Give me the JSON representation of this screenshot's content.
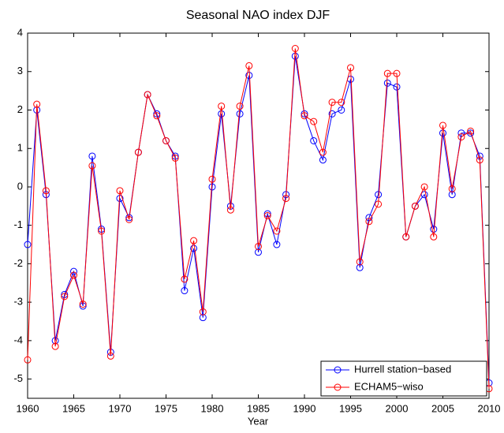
{
  "chart_data": {
    "type": "line",
    "title": "Seasonal NAO index DJF",
    "x_label": "Year",
    "x": [
      1960,
      1961,
      1962,
      1963,
      1964,
      1965,
      1966,
      1967,
      1968,
      1969,
      1970,
      1971,
      1972,
      1973,
      1974,
      1975,
      1976,
      1977,
      1978,
      1979,
      1980,
      1981,
      1982,
      1983,
      1984,
      1985,
      1986,
      1987,
      1988,
      1989,
      1990,
      1991,
      1992,
      1993,
      1994,
      1995,
      1996,
      1997,
      1998,
      1999,
      2000,
      2001,
      2002,
      2003,
      2004,
      2005,
      2006,
      2007,
      2008,
      2009,
      2010
    ],
    "series": [
      {
        "name": "Hurrell station−based",
        "color": "#0000ff",
        "values": [
          -1.5,
          2.0,
          -0.2,
          -4.0,
          -2.8,
          -2.2,
          -3.1,
          0.8,
          -1.1,
          -4.3,
          -0.3,
          -0.8,
          0.9,
          2.4,
          1.9,
          1.2,
          0.8,
          -2.7,
          -1.6,
          -3.4,
          0.0,
          1.9,
          -0.5,
          1.9,
          2.9,
          -1.7,
          -0.7,
          -1.5,
          -0.2,
          3.4,
          1.9,
          1.2,
          0.7,
          1.9,
          2.0,
          2.8,
          -2.1,
          -0.8,
          -0.2,
          2.7,
          2.6,
          -1.3,
          -0.5,
          -0.2,
          -1.1,
          1.4,
          -0.2,
          1.4,
          1.4,
          0.8,
          -5.1
        ]
      },
      {
        "name": "ECHAM5−wiso",
        "color": "#ff0000",
        "values": [
          -4.5,
          2.15,
          -0.1,
          -4.15,
          -2.85,
          -2.3,
          -3.05,
          0.55,
          -1.15,
          -4.4,
          -0.1,
          -0.85,
          0.9,
          2.4,
          1.85,
          1.2,
          0.75,
          -2.4,
          -1.4,
          -3.25,
          0.2,
          2.1,
          -0.6,
          2.1,
          3.15,
          -1.55,
          -0.75,
          -1.15,
          -0.3,
          3.6,
          1.85,
          1.7,
          0.9,
          2.2,
          2.2,
          3.1,
          -1.95,
          -0.9,
          -0.45,
          2.95,
          2.95,
          -1.3,
          -0.5,
          0.0,
          -1.3,
          1.6,
          -0.05,
          1.3,
          1.45,
          0.7,
          -5.25
        ]
      }
    ],
    "xlim": [
      1960,
      2010
    ],
    "xticks": [
      1960,
      1965,
      1970,
      1975,
      1980,
      1985,
      1990,
      1995,
      2000,
      2005,
      2010
    ],
    "ylim": [
      -5.5,
      4
    ],
    "yticks": [
      -5,
      -4,
      -3,
      -2,
      -1,
      0,
      1,
      2,
      3,
      4
    ],
    "legend": "lower right"
  }
}
